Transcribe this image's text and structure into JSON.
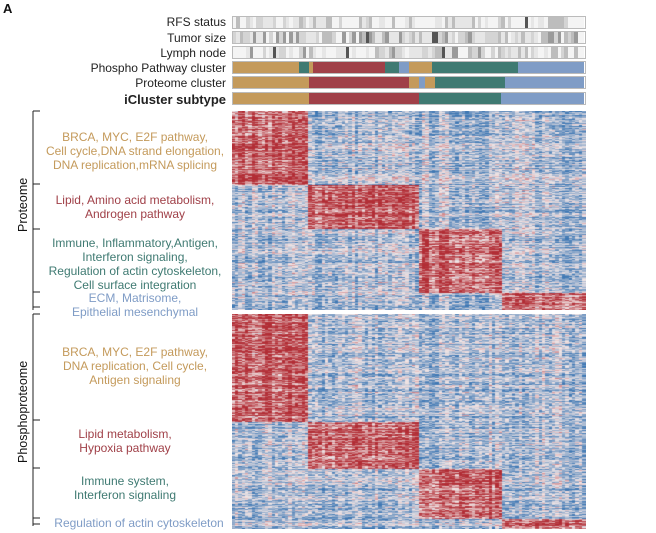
{
  "panel_letter": "A",
  "tracks": [
    {
      "label": "RFS status",
      "bold": false
    },
    {
      "label": "Tumor size",
      "bold": false
    },
    {
      "label": "Lymph node",
      "bold": false
    },
    {
      "label": "Phospho Pathway cluster",
      "bold": false
    },
    {
      "label": "Proteome  cluster",
      "bold": false
    },
    {
      "label": "iCluster  subtype",
      "bold": true
    }
  ],
  "subtype_colors": {
    "subtype1": "#c49a5b",
    "subtype2": "#a04048",
    "subtype3": "#3f7a72",
    "subtype4": "#7f9cc6"
  },
  "heatmap_colors": {
    "high": "#b22d35",
    "mid": "#f1e6e6",
    "low": "#3f78b4"
  },
  "sections": {
    "proteome": "Proteome",
    "phosphoproteome": "Phosphoproteome"
  },
  "proteome_annotations": [
    {
      "line1": "BRCA, MYC, E2F pathway,",
      "line2": "Cell cycle,DNA strand elongation,",
      "line3": "DNA replication,mRNA splicing",
      "color": "#c49a5b"
    },
    {
      "line1": "Lipid, Amino acid metabolism,",
      "line2": "Androgen pathway",
      "line3": "",
      "color": "#a04048"
    },
    {
      "line1": "Immune, Inflammatory,Antigen,",
      "line2": "Interferon signaling,",
      "line3": "Regulation of actin cytoskeleton,",
      "line4": "Cell surface integration",
      "color": "#3f7a72"
    },
    {
      "line1": "ECM, Matrisome,",
      "line2": "Epithelial mesenchymal",
      "line3": "",
      "color": "#7f9cc6"
    }
  ],
  "phospho_annotations": [
    {
      "line1": "BRCA, MYC, E2F pathway,",
      "line2": "DNA replication, Cell cycle,",
      "line3": "Antigen signaling",
      "color": "#c49a5b"
    },
    {
      "line1": "Lipid metabolism,",
      "line2": "Hypoxia pathway",
      "line3": "",
      "color": "#a04048"
    },
    {
      "line1": "Immune system,",
      "line2": "Interferon signaling",
      "line3": "",
      "color": "#3f7a72"
    },
    {
      "line1": "Regulation of actin cytoskeleton",
      "line2": "",
      "line3": "",
      "color": "#7f9cc6"
    }
  ]
}
